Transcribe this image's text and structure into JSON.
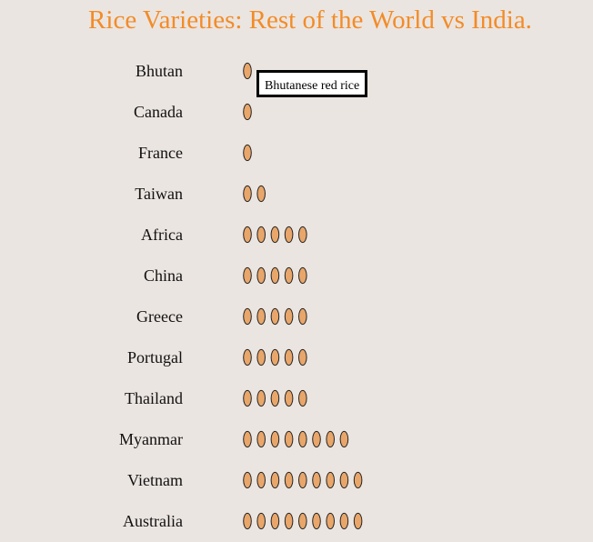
{
  "chart_data": {
    "type": "pictogram",
    "title": "Rice Varieties: Rest of the World vs India.",
    "categories": [
      "Bhutan",
      "Canada",
      "France",
      "Taiwan",
      "Africa",
      "China",
      "Greece",
      "Portugal",
      "Thailand",
      "Myanmar",
      "Vietnam",
      "Australia"
    ],
    "values": [
      1,
      1,
      1,
      2,
      5,
      5,
      5,
      5,
      5,
      8,
      9,
      9
    ],
    "unit_icon": "rice-grain-icon",
    "grain_color": "#e8a66a",
    "title_color": "#f28c28",
    "background_color": "#ebe5e1",
    "tooltip": {
      "category": "Bhutan",
      "text": "Bhutanese red rice"
    }
  }
}
